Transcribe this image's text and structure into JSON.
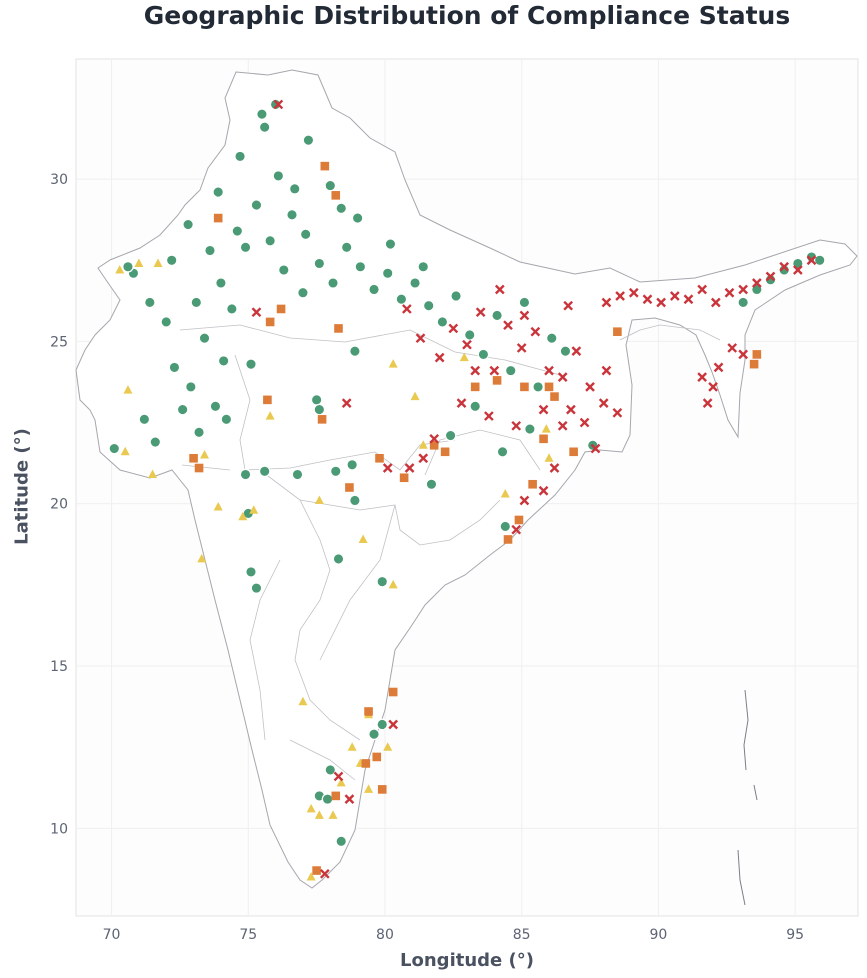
{
  "chart_data": {
    "type": "scatter",
    "title": "Geographic Distribution of Compliance Status",
    "xlabel": "Longitude (°)",
    "ylabel": "Latitude (°)",
    "xlim": [
      68.7,
      97.3
    ],
    "ylim": [
      7.3,
      33.7
    ],
    "xticks": [
      "70",
      "75",
      "80",
      "85",
      "90",
      "95"
    ],
    "yticks": [
      "10",
      "15",
      "20",
      "25",
      "30"
    ],
    "grid": true,
    "colors": {
      "green": "#4a9a75",
      "yellow": "#e9c94f",
      "orange": "#dd7c39",
      "red": "#c9353b"
    },
    "series": [
      {
        "marker": "circle",
        "color": "#4a9a75",
        "points": [
          [
            70.1,
            21.7
          ],
          [
            70.8,
            27.1
          ],
          [
            71.2,
            22.6
          ],
          [
            71.6,
            21.9
          ],
          [
            72.0,
            25.6
          ],
          [
            72.3,
            24.2
          ],
          [
            72.6,
            22.9
          ],
          [
            72.9,
            23.6
          ],
          [
            73.2,
            22.2
          ],
          [
            73.4,
            25.1
          ],
          [
            73.8,
            23.0
          ],
          [
            74.1,
            24.4
          ],
          [
            74.4,
            26.0
          ],
          [
            74.2,
            22.6
          ],
          [
            73.6,
            27.8
          ],
          [
            72.8,
            28.6
          ],
          [
            74.9,
            27.9
          ],
          [
            75.3,
            29.2
          ],
          [
            74.7,
            30.7
          ],
          [
            75.6,
            31.6
          ],
          [
            76.1,
            30.1
          ],
          [
            76.6,
            28.9
          ],
          [
            77.1,
            28.3
          ],
          [
            77.6,
            27.4
          ],
          [
            78.1,
            26.8
          ],
          [
            78.6,
            27.9
          ],
          [
            79.1,
            27.3
          ],
          [
            79.6,
            26.6
          ],
          [
            80.1,
            27.1
          ],
          [
            80.6,
            26.3
          ],
          [
            81.1,
            26.8
          ],
          [
            81.6,
            26.1
          ],
          [
            82.1,
            25.6
          ],
          [
            82.6,
            26.4
          ],
          [
            83.1,
            25.2
          ],
          [
            83.6,
            24.6
          ],
          [
            84.1,
            25.8
          ],
          [
            84.6,
            24.1
          ],
          [
            85.1,
            26.2
          ],
          [
            85.6,
            23.6
          ],
          [
            86.1,
            25.1
          ],
          [
            86.6,
            24.7
          ],
          [
            85.3,
            22.3
          ],
          [
            84.3,
            21.6
          ],
          [
            83.3,
            23.0
          ],
          [
            82.4,
            22.1
          ],
          [
            81.7,
            20.6
          ],
          [
            78.8,
            21.2
          ],
          [
            78.2,
            21.0
          ],
          [
            76.8,
            20.9
          ],
          [
            75.6,
            21.0
          ],
          [
            74.9,
            20.9
          ],
          [
            77.5,
            23.2
          ],
          [
            77.6,
            22.9
          ],
          [
            78.3,
            18.3
          ],
          [
            75.1,
            17.9
          ],
          [
            75.3,
            17.4
          ],
          [
            79.9,
            17.6
          ],
          [
            75.0,
            19.7
          ],
          [
            78.9,
            20.1
          ],
          [
            79.9,
            13.2
          ],
          [
            79.6,
            12.9
          ],
          [
            78.0,
            11.8
          ],
          [
            77.6,
            11.0
          ],
          [
            77.9,
            10.9
          ],
          [
            78.4,
            9.6
          ],
          [
            84.4,
            19.3
          ],
          [
            87.6,
            21.8
          ],
          [
            93.1,
            26.2
          ],
          [
            93.6,
            26.6
          ],
          [
            94.1,
            26.9
          ],
          [
            94.6,
            27.2
          ],
          [
            95.1,
            27.4
          ],
          [
            95.6,
            27.6
          ],
          [
            95.9,
            27.5
          ],
          [
            76.3,
            27.2
          ],
          [
            75.8,
            28.1
          ],
          [
            74.0,
            26.8
          ],
          [
            73.1,
            26.2
          ],
          [
            75.1,
            24.3
          ],
          [
            77.0,
            26.5
          ],
          [
            78.9,
            24.7
          ],
          [
            76.0,
            32.3
          ],
          [
            75.5,
            32.0
          ],
          [
            77.2,
            31.2
          ],
          [
            78.0,
            29.8
          ],
          [
            79.0,
            28.8
          ],
          [
            80.2,
            28.0
          ],
          [
            81.4,
            27.3
          ],
          [
            72.2,
            27.5
          ],
          [
            71.4,
            26.2
          ],
          [
            70.6,
            27.3
          ],
          [
            73.9,
            29.6
          ],
          [
            74.6,
            28.4
          ],
          [
            76.7,
            29.7
          ],
          [
            78.4,
            29.1
          ]
        ]
      },
      {
        "marker": "triangle",
        "color": "#e9c94f",
        "points": [
          [
            70.3,
            27.2
          ],
          [
            71.0,
            27.4
          ],
          [
            71.7,
            27.4
          ],
          [
            70.6,
            23.5
          ],
          [
            70.5,
            21.6
          ],
          [
            71.5,
            20.9
          ],
          [
            73.9,
            19.9
          ],
          [
            74.8,
            19.6
          ],
          [
            75.2,
            19.8
          ],
          [
            75.8,
            22.7
          ],
          [
            73.3,
            18.3
          ],
          [
            79.2,
            18.9
          ],
          [
            80.3,
            17.5
          ],
          [
            80.3,
            24.3
          ],
          [
            81.1,
            23.3
          ],
          [
            82.9,
            24.5
          ],
          [
            84.4,
            20.3
          ],
          [
            85.9,
            22.3
          ],
          [
            86.0,
            21.4
          ],
          [
            77.6,
            20.1
          ],
          [
            77.0,
            13.9
          ],
          [
            79.4,
            13.5
          ],
          [
            79.1,
            12.0
          ],
          [
            79.4,
            11.2
          ],
          [
            78.4,
            11.4
          ],
          [
            78.1,
            10.4
          ],
          [
            77.3,
            10.6
          ],
          [
            77.3,
            8.5
          ],
          [
            78.8,
            12.5
          ],
          [
            80.1,
            12.5
          ],
          [
            77.6,
            10.4
          ],
          [
            73.4,
            21.5
          ],
          [
            81.4,
            21.8
          ]
        ]
      },
      {
        "marker": "square",
        "color": "#dd7c39",
        "points": [
          [
            75.7,
            23.2
          ],
          [
            75.8,
            25.6
          ],
          [
            77.7,
            22.6
          ],
          [
            78.7,
            20.5
          ],
          [
            79.8,
            21.4
          ],
          [
            80.7,
            20.8
          ],
          [
            81.8,
            21.8
          ],
          [
            82.2,
            21.6
          ],
          [
            83.3,
            23.6
          ],
          [
            84.1,
            23.8
          ],
          [
            85.1,
            23.6
          ],
          [
            85.8,
            22.0
          ],
          [
            86.0,
            23.6
          ],
          [
            86.2,
            23.3
          ],
          [
            84.5,
            18.9
          ],
          [
            84.9,
            19.5
          ],
          [
            85.4,
            20.6
          ],
          [
            86.9,
            21.6
          ],
          [
            88.5,
            25.3
          ],
          [
            93.6,
            24.6
          ],
          [
            93.5,
            24.3
          ],
          [
            77.8,
            30.4
          ],
          [
            78.2,
            29.5
          ],
          [
            73.0,
            21.4
          ],
          [
            73.9,
            28.8
          ],
          [
            73.2,
            21.1
          ],
          [
            79.4,
            13.6
          ],
          [
            79.7,
            12.2
          ],
          [
            79.3,
            12.0
          ],
          [
            79.9,
            11.2
          ],
          [
            78.2,
            11.0
          ],
          [
            77.5,
            8.7
          ],
          [
            80.3,
            14.2
          ],
          [
            78.3,
            25.4
          ],
          [
            76.2,
            26.0
          ]
        ]
      },
      {
        "marker": "cross",
        "color": "#c9353b",
        "points": [
          [
            82.0,
            24.5
          ],
          [
            82.5,
            25.4
          ],
          [
            83.0,
            24.9
          ],
          [
            83.5,
            25.9
          ],
          [
            84.0,
            24.1
          ],
          [
            84.5,
            25.5
          ],
          [
            85.0,
            24.8
          ],
          [
            85.5,
            25.3
          ],
          [
            86.0,
            24.1
          ],
          [
            86.5,
            23.9
          ],
          [
            87.0,
            24.7
          ],
          [
            87.5,
            23.6
          ],
          [
            88.0,
            23.1
          ],
          [
            88.5,
            22.8
          ],
          [
            87.3,
            22.5
          ],
          [
            86.8,
            22.9
          ],
          [
            85.8,
            22.9
          ],
          [
            84.8,
            22.4
          ],
          [
            83.8,
            22.7
          ],
          [
            82.8,
            23.1
          ],
          [
            81.8,
            22.0
          ],
          [
            81.4,
            21.4
          ],
          [
            80.9,
            21.1
          ],
          [
            80.1,
            21.1
          ],
          [
            86.2,
            21.1
          ],
          [
            85.8,
            20.4
          ],
          [
            85.1,
            20.1
          ],
          [
            84.8,
            19.2
          ],
          [
            88.1,
            26.2
          ],
          [
            88.6,
            26.4
          ],
          [
            89.1,
            26.5
          ],
          [
            89.6,
            26.3
          ],
          [
            90.1,
            26.2
          ],
          [
            90.6,
            26.4
          ],
          [
            91.1,
            26.3
          ],
          [
            91.6,
            26.6
          ],
          [
            92.1,
            26.2
          ],
          [
            92.6,
            26.5
          ],
          [
            93.1,
            26.6
          ],
          [
            93.6,
            26.8
          ],
          [
            94.1,
            27.0
          ],
          [
            94.6,
            27.3
          ],
          [
            95.1,
            27.2
          ],
          [
            95.6,
            27.5
          ],
          [
            91.6,
            23.9
          ],
          [
            92.0,
            23.6
          ],
          [
            91.8,
            23.1
          ],
          [
            92.2,
            24.2
          ],
          [
            92.7,
            24.8
          ],
          [
            93.1,
            24.6
          ],
          [
            80.3,
            13.2
          ],
          [
            78.7,
            10.9
          ],
          [
            78.3,
            11.6
          ],
          [
            77.8,
            8.6
          ],
          [
            76.1,
            32.3
          ],
          [
            75.3,
            25.9
          ],
          [
            78.6,
            23.1
          ],
          [
            85.1,
            25.8
          ],
          [
            88.1,
            24.1
          ],
          [
            87.7,
            21.7
          ],
          [
            86.5,
            22.4
          ],
          [
            83.3,
            24.1
          ],
          [
            84.2,
            26.6
          ],
          [
            86.7,
            26.1
          ],
          [
            81.3,
            25.1
          ],
          [
            80.8,
            26.0
          ]
        ]
      }
    ]
  }
}
